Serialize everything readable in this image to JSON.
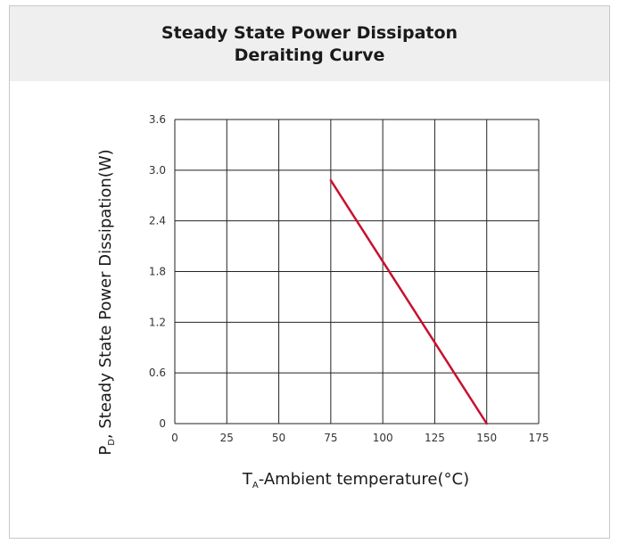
{
  "chart_data": {
    "type": "line",
    "title_line1": "Steady State Power Dissipaton",
    "title_line2": "Deraiting Curve",
    "xlabel": {
      "main": "T",
      "sub": "A",
      "rest": "-Ambient temperature(°C)"
    },
    "ylabel": {
      "main": "P",
      "sub": "D",
      "rest": ", Steady State Power Dissipation(W)"
    },
    "x_ticks": [
      "0",
      "25",
      "50",
      "75",
      "100",
      "125",
      "150",
      "175"
    ],
    "y_ticks": [
      "0",
      "0.6",
      "1.2",
      "1.8",
      "2.4",
      "3.0",
      "3.6"
    ],
    "xlim": [
      0,
      175
    ],
    "ylim": [
      0,
      3.6
    ],
    "grid": true,
    "series": [
      {
        "color": "#c8102e",
        "x": [
          75,
          150
        ],
        "y": [
          2.88,
          0
        ]
      }
    ]
  },
  "colors": {
    "header_bg": "#efefef",
    "grid": "#222222",
    "line": "#c8102e"
  }
}
